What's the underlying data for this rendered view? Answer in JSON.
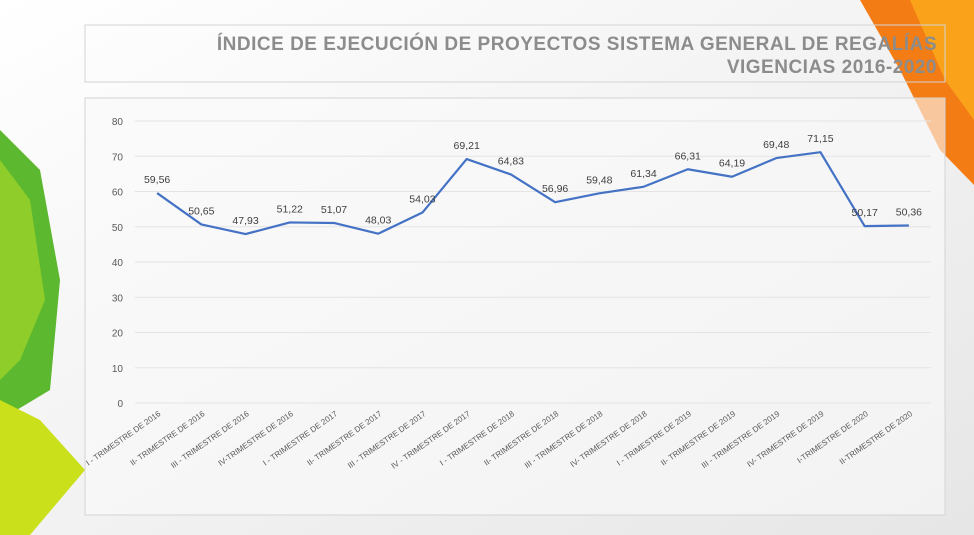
{
  "chart_data": {
    "type": "line",
    "title": "ÍNDICE DE EJECUCIÓN DE PROYECTOS SISTEMA GENERAL DE REGALÍAS",
    "subtitle": "VIGENCIAS 2016-2020",
    "categories": [
      "I - TRIMESTRE DE 2016",
      "II- TRIMESTRE DE 2016",
      "III - TRIMESTRE DE 2016",
      "IV-TRIMESTRE DE 2016",
      "I - TRIMESTRE DE 2017",
      "II- TRIMESTRE DE 2017",
      "III - TRIMESTRE DE 2017",
      "IV - TRIMESTRE DE 2017",
      "I - TRIMESTRE DE 2018",
      "II- TRIMESTRE DE 2018",
      "III - TRIMESTRE DE 2018",
      "IV- TRIMESTRE DE 2018",
      "I - TRIMESTRE DE 2019",
      "II- TRIMESTRE DE 2019",
      "III - TRIMESTRE DE 2019",
      "IV- TRIMESTRE DE 2019",
      "I-TRIMESTRE DE 2020",
      "II-TRIMESTRE DE 2020"
    ],
    "values": [
      59.56,
      50.65,
      47.93,
      51.22,
      51.07,
      48.03,
      54.03,
      69.21,
      64.83,
      56.96,
      59.48,
      61.34,
      66.31,
      64.19,
      69.48,
      71.15,
      50.17,
      50.36
    ],
    "value_labels": [
      "59,56",
      "50,65",
      "47,93",
      "51,22",
      "51,07",
      "48,03",
      "54,03",
      "69,21",
      "64,83",
      "56,96",
      "59,48",
      "61,34",
      "66,31",
      "64,19",
      "69,48",
      "71,15",
      "50,17",
      "50,36"
    ],
    "color": "#4472c4",
    "ylim": [
      0,
      80
    ],
    "yticks": [
      0,
      10,
      20,
      30,
      40,
      50,
      60,
      70,
      80
    ],
    "grid": true
  }
}
